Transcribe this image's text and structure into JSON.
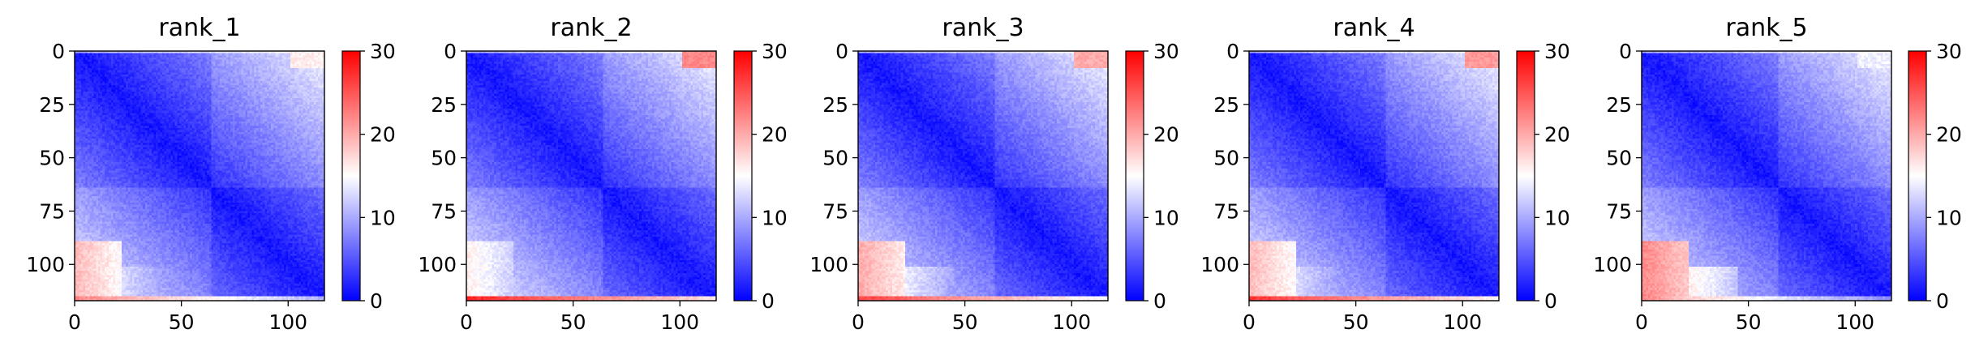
{
  "chart_data": [
    {
      "type": "heatmap",
      "title": "rank_1",
      "n": 117,
      "xticks": [
        "0",
        "50",
        "100"
      ],
      "yticks": [
        "0",
        "25",
        "50",
        "75",
        "100"
      ],
      "colorbar_ticks": [
        "0",
        "10",
        "20",
        "30"
      ],
      "vmin": 0,
      "vmax": 30,
      "colormap": "bwr",
      "lower_left_block_level": 19,
      "edge_band_level": 22
    },
    {
      "type": "heatmap",
      "title": "rank_2",
      "n": 117,
      "xticks": [
        "0",
        "50",
        "100"
      ],
      "yticks": [
        "0",
        "25",
        "50",
        "75",
        "100"
      ],
      "colorbar_ticks": [
        "0",
        "10",
        "20",
        "30"
      ],
      "vmin": 0,
      "vmax": 30,
      "colormap": "bwr",
      "lower_left_block_level": 16,
      "edge_band_level": 28
    },
    {
      "type": "heatmap",
      "title": "rank_3",
      "n": 117,
      "xticks": [
        "0",
        "50",
        "100"
      ],
      "yticks": [
        "0",
        "25",
        "50",
        "75",
        "100"
      ],
      "colorbar_ticks": [
        "0",
        "10",
        "20",
        "30"
      ],
      "vmin": 0,
      "vmax": 30,
      "colormap": "bwr",
      "lower_left_block_level": 20,
      "edge_band_level": 26
    },
    {
      "type": "heatmap",
      "title": "rank_4",
      "n": 117,
      "xticks": [
        "0",
        "50",
        "100"
      ],
      "yticks": [
        "0",
        "25",
        "50",
        "75",
        "100"
      ],
      "colorbar_ticks": [
        "0",
        "10",
        "20",
        "30"
      ],
      "vmin": 0,
      "vmax": 30,
      "colormap": "bwr",
      "lower_left_block_level": 19,
      "edge_band_level": 27
    },
    {
      "type": "heatmap",
      "title": "rank_5",
      "n": 117,
      "xticks": [
        "0",
        "50",
        "100"
      ],
      "yticks": [
        "0",
        "25",
        "50",
        "75",
        "100"
      ],
      "colorbar_ticks": [
        "0",
        "10",
        "20",
        "30"
      ],
      "vmin": 0,
      "vmax": 30,
      "colormap": "bwr",
      "lower_left_block_level": 22,
      "edge_band_level": 20
    }
  ],
  "colors": {
    "low": "#0000ff",
    "mid": "#ffffff",
    "high": "#ff0000"
  }
}
